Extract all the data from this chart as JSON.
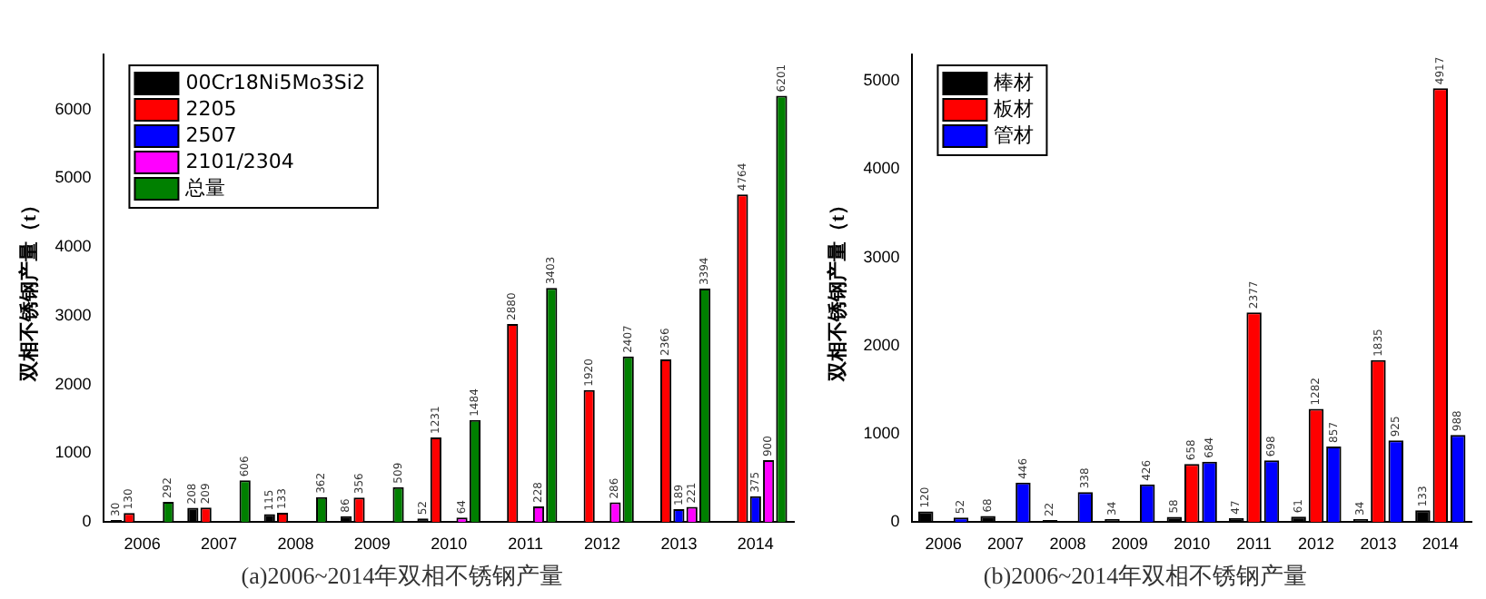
{
  "chart_data": [
    {
      "type": "bar",
      "title": "(a)2006~2014年双相不锈钢产量",
      "ylabel": "双相不锈钢产量（t）",
      "categories": [
        "2006",
        "2007",
        "2008",
        "2009",
        "2010",
        "2011",
        "2012",
        "2013",
        "2014"
      ],
      "series": [
        {
          "name": "00Cr18Ni5Mo3Si2",
          "color": "#000000",
          "values": [
            30,
            208,
            115,
            86,
            52,
            null,
            null,
            null,
            null
          ]
        },
        {
          "name": "2205",
          "color": "#ff0000",
          "values": [
            130,
            209,
            133,
            356,
            1231,
            2880,
            1920,
            2366,
            4764
          ]
        },
        {
          "name": "2507",
          "color": "#0000ff",
          "values": [
            null,
            null,
            null,
            null,
            null,
            null,
            null,
            189,
            375
          ]
        },
        {
          "name": "2101/2304",
          "color": "#ff00ff",
          "values": [
            null,
            null,
            null,
            null,
            64,
            228,
            286,
            221,
            900
          ]
        },
        {
          "name": "总量",
          "color": "#008000",
          "values": [
            292,
            606,
            362,
            509,
            1484,
            3403,
            2407,
            3394,
            6201
          ]
        }
      ],
      "ylim": [
        0,
        6800
      ],
      "yticks": [
        0,
        1000,
        2000,
        3000,
        4000,
        5000,
        6000
      ],
      "legend": "top left",
      "data_labels": true
    },
    {
      "type": "bar",
      "title": "(b)2006~2014年双相不锈钢产量",
      "ylabel": "双相不锈钢产量（t）",
      "categories": [
        "2006",
        "2007",
        "2008",
        "2009",
        "2010",
        "2011",
        "2012",
        "2013",
        "2014"
      ],
      "series": [
        {
          "name": "棒材",
          "color": "#000000",
          "values": [
            120,
            68,
            22,
            34,
            58,
            47,
            61,
            34,
            133
          ]
        },
        {
          "name": "板材",
          "color": "#ff0000",
          "values": [
            null,
            null,
            null,
            null,
            658,
            2377,
            1282,
            1835,
            4917
          ]
        },
        {
          "name": "管材",
          "color": "#0000ff",
          "values": [
            52,
            446,
            338,
            426,
            684,
            698,
            857,
            925,
            988
          ]
        }
      ],
      "ylim": [
        0,
        5300
      ],
      "yticks": [
        0,
        1000,
        2000,
        3000,
        4000,
        5000
      ],
      "legend": "top left",
      "data_labels": true
    }
  ]
}
